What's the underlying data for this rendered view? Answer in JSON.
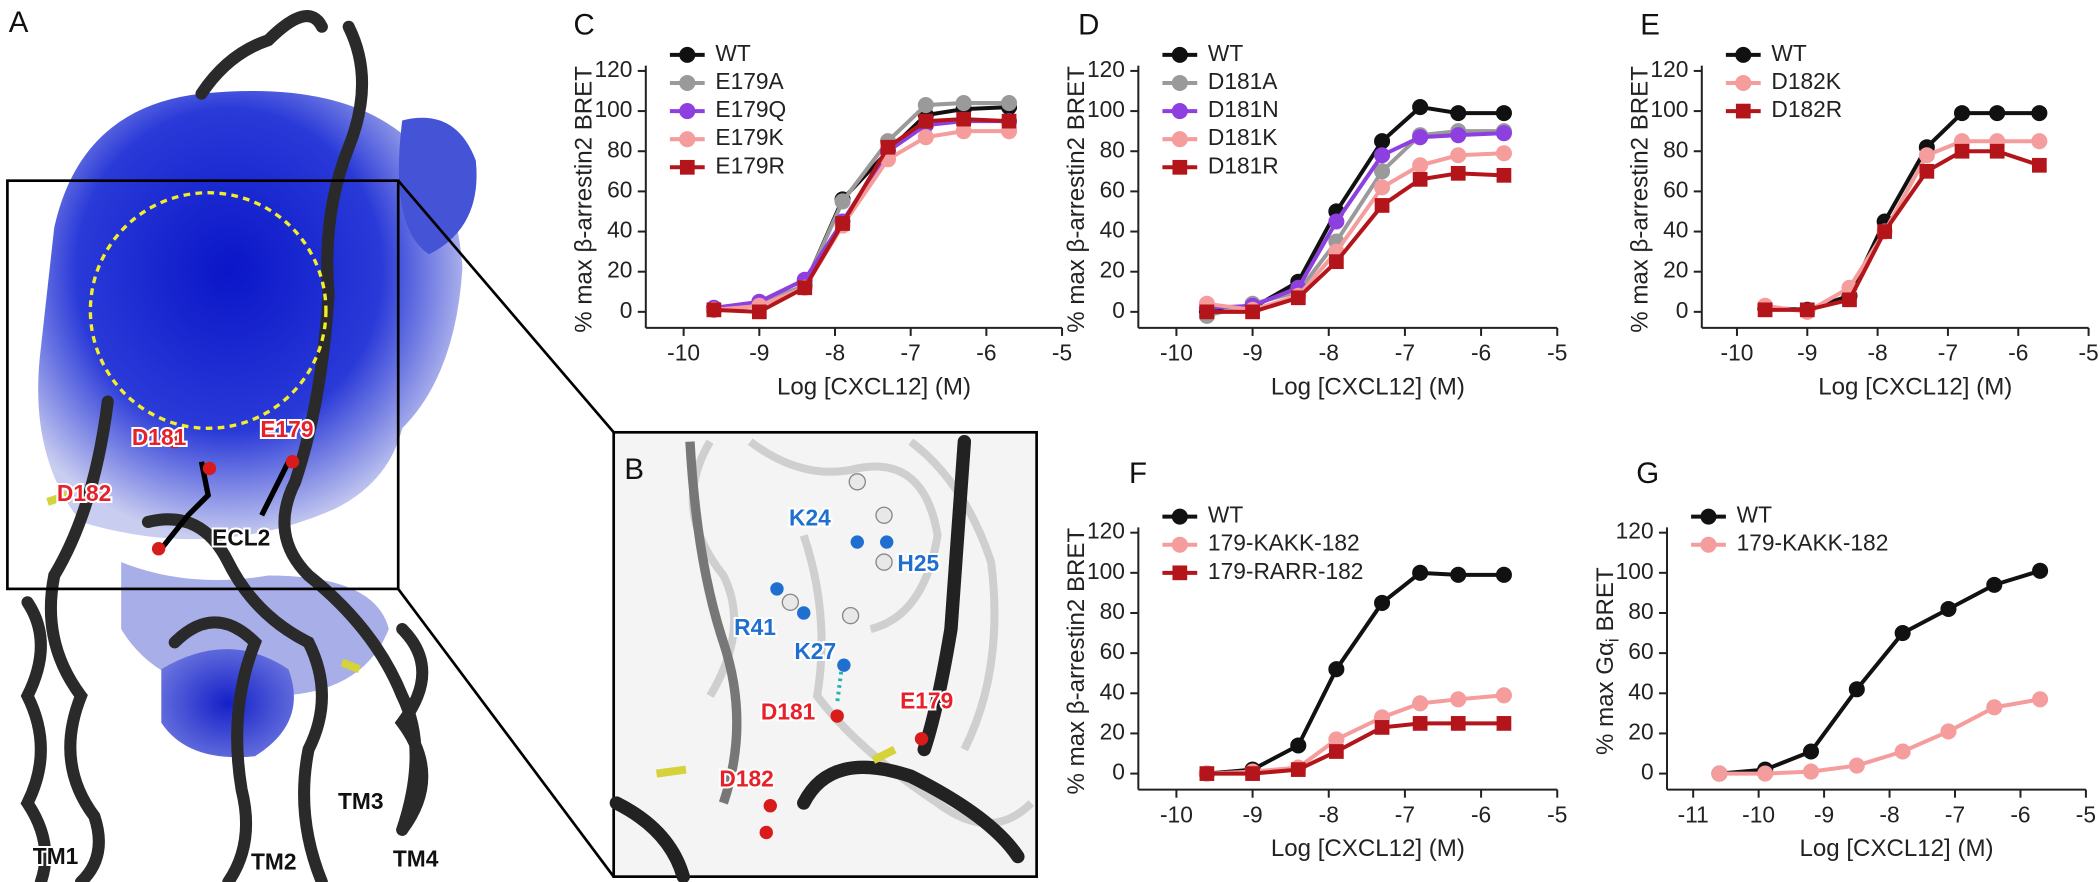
{
  "figure": {
    "panel_labels": [
      "A",
      "B"
    ],
    "panel_a_labels": [
      "D181",
      "E179",
      "D182",
      "ECL2",
      "TM1",
      "TM2",
      "TM3",
      "TM4"
    ],
    "panel_b_labels": [
      "K24",
      "H25",
      "R41",
      "K27",
      "D181",
      "E179",
      "D182"
    ]
  },
  "chart_data": [
    {
      "type": "line",
      "panel_label": "C",
      "y_label": "% max β-arrestin2 BRET",
      "x_label": "Log [CXCL12] (M)",
      "x": [
        -9.6,
        -9.0,
        -8.4,
        -7.9,
        -7.3,
        -6.8,
        -6.3,
        -5.7
      ],
      "series": [
        {
          "name": "WT",
          "color": "#111111",
          "marker": "circle",
          "values": [
            1,
            4,
            13,
            56,
            80,
            98,
            101,
            102
          ]
        },
        {
          "name": "E179A",
          "color": "#9a9a9a",
          "marker": "circle",
          "values": [
            1,
            4,
            13,
            55,
            85,
            103,
            104,
            104
          ]
        },
        {
          "name": "E179Q",
          "color": "#8e3fe0",
          "marker": "circle",
          "values": [
            2,
            5,
            16,
            45,
            80,
            93,
            95,
            95
          ]
        },
        {
          "name": "E179K",
          "color": "#f59c9c",
          "marker": "circle",
          "values": [
            1,
            3,
            12,
            43,
            76,
            87,
            90,
            90
          ]
        },
        {
          "name": "E179R",
          "color": "#b3151b",
          "marker": "square",
          "values": [
            1,
            0,
            12,
            44,
            82,
            95,
            96,
            95
          ]
        }
      ],
      "xlim": [
        -10.5,
        -5
      ],
      "xticks": [
        -10,
        -9,
        -8,
        -7,
        -6,
        -5
      ],
      "ylim": [
        -8,
        120
      ],
      "yticks": [
        0,
        20,
        40,
        60,
        80,
        100,
        120
      ]
    },
    {
      "type": "line",
      "panel_label": "D",
      "y_label": "% max β-arrestin2 BRET",
      "x_label": "Log [CXCL12] (M)",
      "x": [
        -9.6,
        -9.0,
        -8.4,
        -7.9,
        -7.3,
        -6.8,
        -6.3,
        -5.7
      ],
      "series": [
        {
          "name": "WT",
          "color": "#111111",
          "marker": "circle",
          "values": [
            0,
            2,
            15,
            50,
            85,
            102,
            99,
            99
          ]
        },
        {
          "name": "D181A",
          "color": "#9a9a9a",
          "marker": "circle",
          "values": [
            -2,
            4,
            10,
            35,
            70,
            88,
            90,
            90
          ]
        },
        {
          "name": "D181N",
          "color": "#8e3fe0",
          "marker": "circle",
          "values": [
            2,
            3,
            12,
            45,
            78,
            87,
            88,
            89
          ]
        },
        {
          "name": "D181K",
          "color": "#f59c9c",
          "marker": "circle",
          "values": [
            4,
            1,
            8,
            30,
            62,
            73,
            78,
            79
          ]
        },
        {
          "name": "D181R",
          "color": "#b3151b",
          "marker": "square",
          "values": [
            0,
            0,
            7,
            25,
            53,
            66,
            69,
            68
          ]
        }
      ],
      "xlim": [
        -10.5,
        -5
      ],
      "xticks": [
        -10,
        -9,
        -8,
        -7,
        -6,
        -5
      ],
      "ylim": [
        -8,
        120
      ],
      "yticks": [
        0,
        20,
        40,
        60,
        80,
        100,
        120
      ]
    },
    {
      "type": "line",
      "panel_label": "E",
      "y_label": "% max β-arrestin2 BRET",
      "x_label": "Log [CXCL12] (M)",
      "x": [
        -9.6,
        -9.0,
        -8.4,
        -7.9,
        -7.3,
        -6.8,
        -6.3,
        -5.7
      ],
      "series": [
        {
          "name": "WT",
          "color": "#111111",
          "marker": "circle",
          "values": [
            2,
            1,
            8,
            45,
            82,
            99,
            99,
            99
          ]
        },
        {
          "name": "D182K",
          "color": "#f59c9c",
          "marker": "circle",
          "values": [
            3,
            0,
            12,
            40,
            78,
            85,
            85,
            85
          ]
        },
        {
          "name": "D182R",
          "color": "#b3151b",
          "marker": "square",
          "values": [
            1,
            1,
            6,
            40,
            70,
            80,
            80,
            73
          ]
        }
      ],
      "xlim": [
        -10.5,
        -5
      ],
      "xticks": [
        -10,
        -9,
        -8,
        -7,
        -6,
        -5
      ],
      "ylim": [
        -8,
        120
      ],
      "yticks": [
        0,
        20,
        40,
        60,
        80,
        100,
        120
      ]
    },
    {
      "type": "line",
      "panel_label": "F",
      "y_label": "% max β-arrestin2 BRET",
      "x_label": "Log [CXCL12] (M)",
      "x": [
        -9.6,
        -9.0,
        -8.4,
        -7.9,
        -7.3,
        -6.8,
        -6.3,
        -5.7
      ],
      "series": [
        {
          "name": "WT",
          "color": "#111111",
          "marker": "circle",
          "values": [
            0,
            2,
            14,
            52,
            85,
            100,
            99,
            99
          ]
        },
        {
          "name": "179-KAKK-182",
          "color": "#f59c9c",
          "marker": "circle",
          "values": [
            0,
            1,
            3,
            17,
            28,
            35,
            37,
            39
          ]
        },
        {
          "name": "179-RARR-182",
          "color": "#b3151b",
          "marker": "square",
          "values": [
            0,
            0,
            2,
            11,
            23,
            25,
            25,
            25
          ]
        }
      ],
      "xlim": [
        -10.5,
        -5
      ],
      "xticks": [
        -10,
        -9,
        -8,
        -7,
        -6,
        -5
      ],
      "ylim": [
        -8,
        120
      ],
      "yticks": [
        0,
        20,
        40,
        60,
        80,
        100,
        120
      ]
    },
    {
      "type": "line",
      "panel_label": "G",
      "y_label": "% max Gα",
      "y_label_sub": "i",
      "y_label_end": "BRET",
      "x_label": "Log [CXCL12] (M)",
      "x": [
        -10.6,
        -9.9,
        -9.2,
        -8.5,
        -7.8,
        -7.1,
        -6.4,
        -5.7
      ],
      "series": [
        {
          "name": "WT",
          "color": "#111111",
          "marker": "circle",
          "values": [
            0,
            2,
            11,
            42,
            70,
            82,
            94,
            101
          ]
        },
        {
          "name": "179-KAKK-182",
          "color": "#f59c9c",
          "marker": "circle",
          "values": [
            0,
            0,
            1,
            4,
            11,
            21,
            33,
            37
          ]
        }
      ],
      "xlim": [
        -11.4,
        -5
      ],
      "xticks": [
        -11,
        -10,
        -9,
        -8,
        -7,
        -6,
        -5
      ],
      "ylim": [
        -8,
        120
      ],
      "yticks": [
        0,
        20,
        40,
        60,
        80,
        100,
        120
      ]
    }
  ]
}
